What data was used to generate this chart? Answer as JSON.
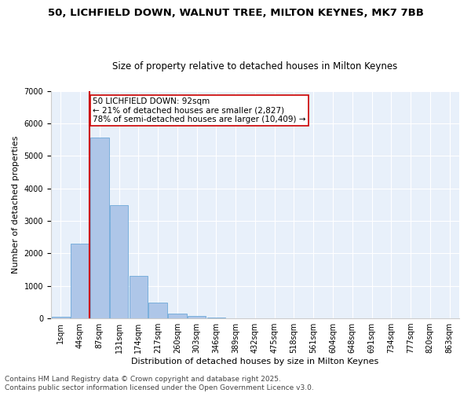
{
  "title_line1": "50, LICHFIELD DOWN, WALNUT TREE, MILTON KEYNES, MK7 7BB",
  "title_line2": "Size of property relative to detached houses in Milton Keynes",
  "xlabel": "Distribution of detached houses by size in Milton Keynes",
  "ylabel": "Number of detached properties",
  "bin_labels": [
    "1sqm",
    "44sqm",
    "87sqm",
    "131sqm",
    "174sqm",
    "217sqm",
    "260sqm",
    "303sqm",
    "346sqm",
    "389sqm",
    "432sqm",
    "475sqm",
    "518sqm",
    "561sqm",
    "604sqm",
    "648sqm",
    "691sqm",
    "734sqm",
    "777sqm",
    "820sqm",
    "863sqm"
  ],
  "bar_values": [
    60,
    2300,
    5560,
    3480,
    1320,
    480,
    155,
    80,
    35,
    10,
    5,
    3,
    2,
    1,
    1,
    0,
    0,
    0,
    0,
    0,
    0
  ],
  "bar_color": "#aec6e8",
  "bar_edge_color": "#5a9fd4",
  "background_color": "#e8f0fa",
  "grid_color": "#ffffff",
  "annotation_text": "50 LICHFIELD DOWN: 92sqm\n← 21% of detached houses are smaller (2,827)\n78% of semi-detached houses are larger (10,409) →",
  "annotation_box_color": "#ffffff",
  "annotation_box_edge": "#cc0000",
  "vline_color": "#cc0000",
  "ylim": [
    0,
    7000
  ],
  "yticks": [
    0,
    1000,
    2000,
    3000,
    4000,
    5000,
    6000,
    7000
  ],
  "footer_line1": "Contains HM Land Registry data © Crown copyright and database right 2025.",
  "footer_line2": "Contains public sector information licensed under the Open Government Licence v3.0.",
  "title_fontsize": 9.5,
  "subtitle_fontsize": 8.5,
  "axis_label_fontsize": 8,
  "tick_fontsize": 7,
  "annotation_fontsize": 7.5,
  "footer_fontsize": 6.5
}
